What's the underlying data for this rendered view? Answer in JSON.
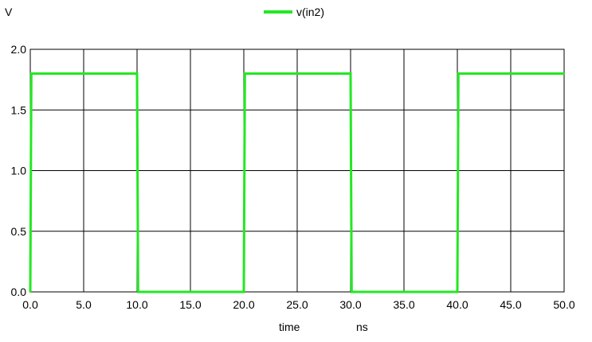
{
  "chart_data": {
    "type": "line",
    "title": "",
    "ylabel": "V",
    "xlabel": "time",
    "xunit": "ns",
    "xlim": [
      0,
      50
    ],
    "ylim": [
      0,
      2.0
    ],
    "grid": true,
    "legend_position": "top-center",
    "x_ticks": [
      "0.0",
      "5.0",
      "10.0",
      "15.0",
      "20.0",
      "25.0",
      "30.0",
      "35.0",
      "40.0",
      "45.0",
      "50.0"
    ],
    "y_ticks": [
      "0.0",
      "0.5",
      "1.0",
      "1.5",
      "2.0"
    ],
    "series": [
      {
        "name": "v(in2)",
        "color": "#22e822",
        "x": [
          0.0,
          0.1,
          10.0,
          10.1,
          20.0,
          20.1,
          30.0,
          30.1,
          40.0,
          40.1,
          50.0
        ],
        "values": [
          0.0,
          1.8,
          1.8,
          0.0,
          0.0,
          1.8,
          1.8,
          0.0,
          0.0,
          1.8,
          1.8
        ]
      }
    ]
  }
}
